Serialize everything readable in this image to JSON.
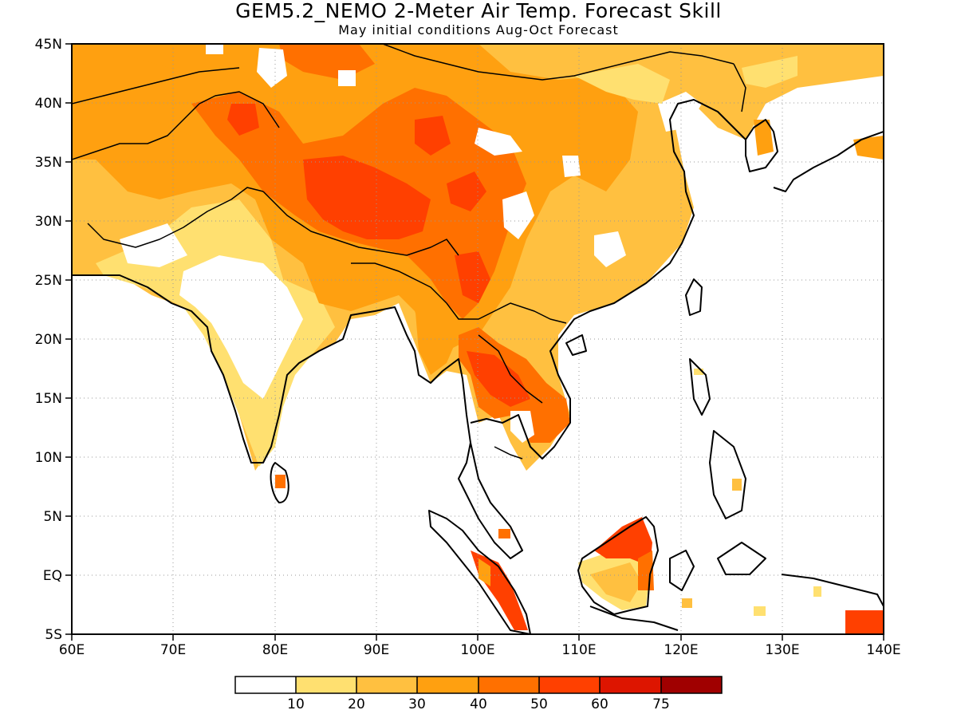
{
  "title": "GEM5.2_NEMO 2-Meter Air Temp. Forecast Skill",
  "subtitle": "May initial conditions  Aug-Oct Forecast",
  "lat_labels": [
    "45N",
    "40N",
    "35N",
    "30N",
    "25N",
    "20N",
    "15N",
    "10N",
    "5N",
    "EQ",
    "5S"
  ],
  "lon_labels": [
    "60E",
    "70E",
    "80E",
    "90E",
    "100E",
    "110E",
    "120E",
    "130E",
    "140E"
  ],
  "colorbar": {
    "levels": [
      "10",
      "20",
      "30",
      "40",
      "50",
      "60",
      "75"
    ],
    "colors": [
      "#ffffff",
      "#ffe070",
      "#ffc040",
      "#ffa010",
      "#ff7000",
      "#ff4000",
      "#dd1500",
      "#a00000"
    ]
  },
  "map_extent": {
    "lon_min": 60,
    "lon_max": 140,
    "lat_min": -5,
    "lat_max": 45
  }
}
